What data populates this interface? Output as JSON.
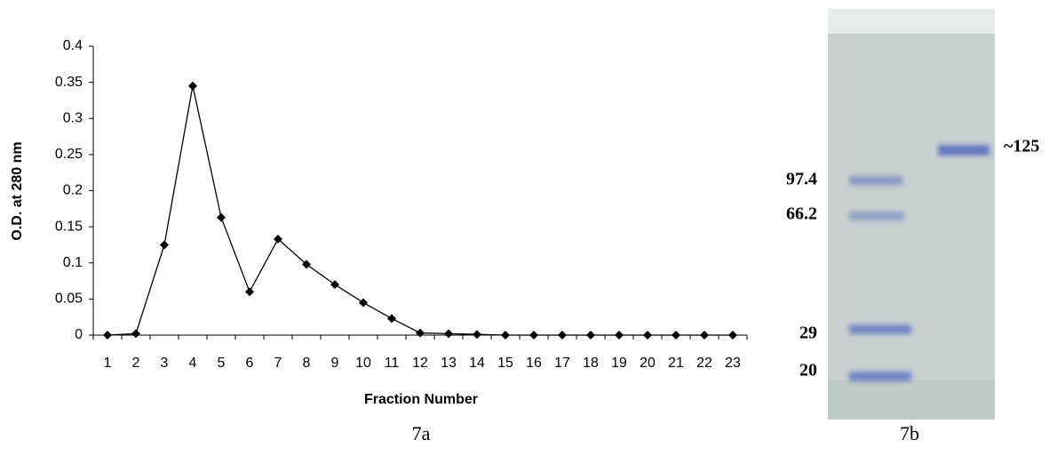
{
  "chart_data": {
    "type": "line",
    "caption": "7a",
    "x_label": "Fraction Number",
    "y_label": "O.D. at 280 nm",
    "categories": [
      "1",
      "2",
      "3",
      "4",
      "5",
      "6",
      "7",
      "8",
      "9",
      "10",
      "11",
      "12",
      "13",
      "14",
      "15",
      "16",
      "17",
      "18",
      "19",
      "20",
      "21",
      "22",
      "23"
    ],
    "values": [
      0,
      0.002,
      0.125,
      0.345,
      0.163,
      0.06,
      0.133,
      0.098,
      0.07,
      0.045,
      0.023,
      0.003,
      0.002,
      0.001,
      0,
      0,
      0,
      0,
      0,
      0,
      0,
      0,
      0
    ],
    "color": "#000000",
    "ylim": [
      0,
      0.4
    ],
    "yticks": [
      0,
      0.05,
      0.1,
      0.15,
      0.2,
      0.25,
      0.3,
      0.35,
      0.4
    ],
    "grid": false
  },
  "gel": {
    "caption": "7b",
    "markers": [
      "97.4",
      "66.2",
      "29",
      "20"
    ],
    "band_label": "~125"
  }
}
